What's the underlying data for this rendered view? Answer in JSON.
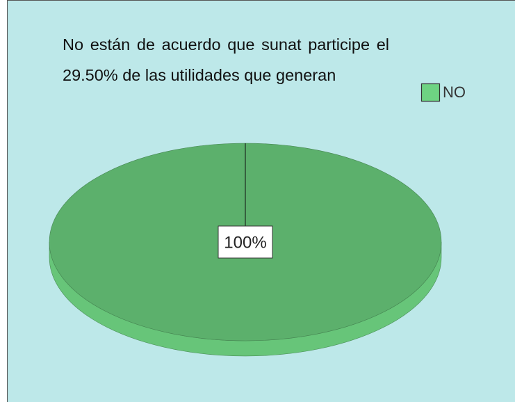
{
  "chart_data": {
    "type": "pie",
    "title": "No están de acuerdo que sunat participe el 29.50% de las utilidades que generan",
    "categories": [
      "NO"
    ],
    "values": [
      100
    ],
    "value_labels": [
      "100%"
    ],
    "colors": [
      "#5cb06c"
    ],
    "legend": "top-right"
  }
}
